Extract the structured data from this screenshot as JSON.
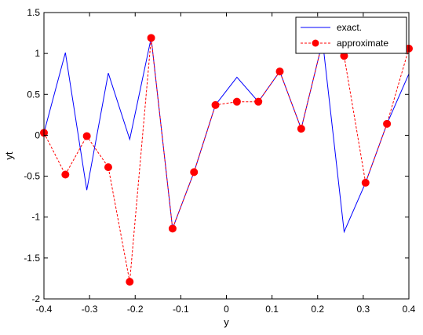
{
  "chart_data": {
    "type": "line",
    "xlabel": "y",
    "ylabel": "yt",
    "xlim": [
      -0.4,
      0.4
    ],
    "ylim": [
      -2,
      1.5
    ],
    "x_ticks": [
      -0.4,
      -0.3,
      -0.2,
      -0.1,
      0,
      0.1,
      0.2,
      0.3,
      0.4
    ],
    "x_tick_labels": [
      "-0.4",
      "-0.3",
      "-0.2",
      "-0.1",
      "0",
      "0.1",
      "0.2",
      "0.3",
      "0.4"
    ],
    "y_ticks": [
      -2,
      -1.5,
      -1,
      -0.5,
      0,
      0.5,
      1,
      1.5
    ],
    "y_tick_labels": [
      "-2",
      "-1.5",
      "-1",
      "-0.5",
      "0",
      "0.5",
      "1",
      "1.5"
    ],
    "grid": false,
    "legend_position": "top-right",
    "series": [
      {
        "name": "exact.",
        "color": "#0000ff",
        "style": "solid",
        "marker": "none",
        "points": [
          [
            -0.4,
            0.03
          ],
          [
            -0.353,
            1.01
          ],
          [
            -0.306,
            -0.67
          ],
          [
            -0.259,
            0.76
          ],
          [
            -0.212,
            -0.05
          ],
          [
            -0.165,
            1.19
          ],
          [
            -0.118,
            -1.14
          ],
          [
            -0.071,
            -0.45
          ],
          [
            -0.024,
            0.37
          ],
          [
            0.023,
            0.71
          ],
          [
            0.07,
            0.41
          ],
          [
            0.117,
            0.78
          ],
          [
            0.164,
            0.08
          ],
          [
            0.211,
            1.15
          ],
          [
            0.258,
            -1.18
          ],
          [
            0.305,
            -0.58
          ],
          [
            0.352,
            0.14
          ],
          [
            0.4,
            0.75
          ]
        ]
      },
      {
        "name": "approximate",
        "color": "#ff0000",
        "style": "dashed",
        "marker": "circle",
        "points": [
          [
            -0.4,
            0.03
          ],
          [
            -0.353,
            -0.48
          ],
          [
            -0.306,
            -0.01
          ],
          [
            -0.259,
            -0.39
          ],
          [
            -0.212,
            -1.79
          ],
          [
            -0.165,
            1.19
          ],
          [
            -0.118,
            -1.14
          ],
          [
            -0.071,
            -0.45
          ],
          [
            -0.024,
            0.37
          ],
          [
            0.023,
            0.41
          ],
          [
            0.07,
            0.41
          ],
          [
            0.117,
            0.78
          ],
          [
            0.164,
            0.08
          ],
          [
            0.211,
            1.15
          ],
          [
            0.258,
            0.97
          ],
          [
            0.305,
            -0.58
          ],
          [
            0.352,
            0.14
          ],
          [
            0.4,
            1.06
          ]
        ]
      }
    ]
  }
}
